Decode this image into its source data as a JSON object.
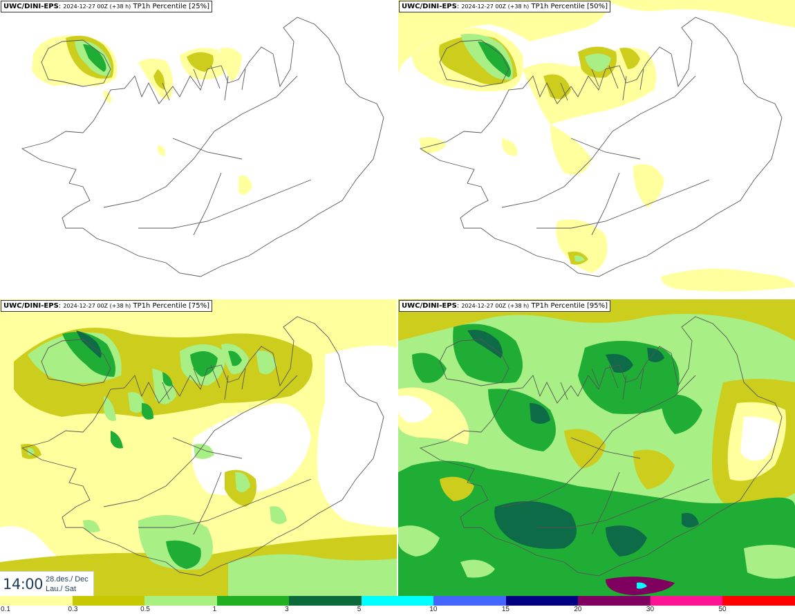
{
  "panels": [
    {
      "model": "UWC/DINI-EPS",
      "run": "2024-12-27 00Z (+38 h)",
      "label": "TP1h Percentile [25%]"
    },
    {
      "model": "UWC/DINI-EPS",
      "run": "2024-12-27 00Z (+38 h)",
      "label": "TP1h Percentile [50%]"
    },
    {
      "model": "UWC/DINI-EPS",
      "run": "2024-12-27 00Z (+38 h)",
      "label": "TP1h Percentile [75%]"
    },
    {
      "model": "UWC/DINI-EPS",
      "run": "2024-12-27 00Z (+38 h)",
      "label": "TP1h Percentile [95%]"
    }
  ],
  "time": {
    "clock": "14:00",
    "date_line1": "28.des./ Dec",
    "date_line2": "Lau./ Sat"
  },
  "legend": {
    "ticks": [
      "0.1",
      "0.3",
      "0.5",
      "1",
      "3",
      "5",
      "10",
      "15",
      "20",
      "30",
      "50"
    ],
    "colors": [
      "#ffffa0",
      "#c8c800",
      "#a8f080",
      "#22b022",
      "#0a6a3a",
      "#00ffff",
      "#4466ff",
      "#000080",
      "#800060",
      "#ff1493",
      "#ff0000"
    ]
  },
  "fill_colors": {
    "light_yellow": "#ffff9e",
    "olive": "#cdcd1e",
    "light_green": "#a8ef86",
    "green": "#1fad36",
    "dark_green": "#0e6b48"
  }
}
